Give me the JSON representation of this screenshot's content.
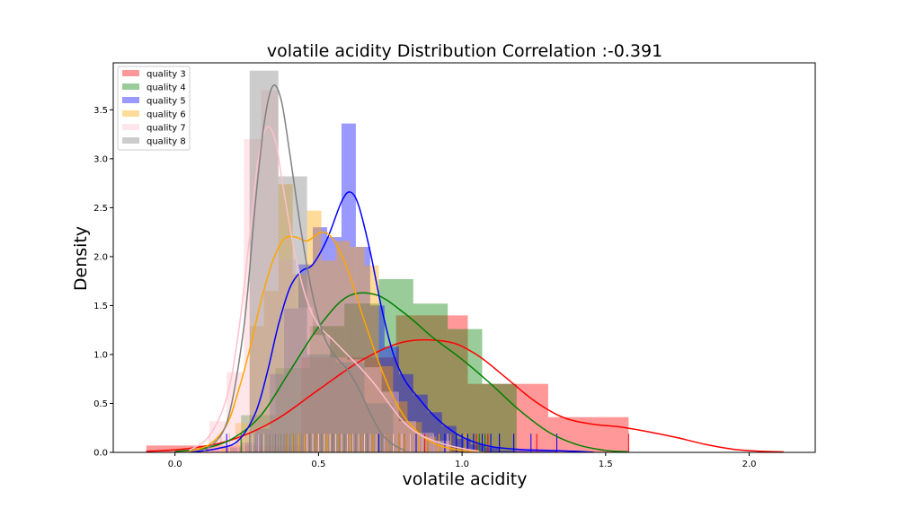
{
  "chart_data": {
    "type": "histogram-kde",
    "title": "volatile acidity Distribution Correlation :-0.391",
    "xlabel": "volatile acidity",
    "ylabel": "Density",
    "xlim": [
      -0.215,
      2.23
    ],
    "ylim": [
      0,
      3.98
    ],
    "xticks": [
      0.0,
      0.5,
      1.0,
      1.5,
      2.0
    ],
    "yticks": [
      0.0,
      0.5,
      1.0,
      1.5,
      2.0,
      2.5,
      3.0,
      3.5
    ],
    "grid": false,
    "legend_position": "upper-left",
    "series": [
      {
        "name": "quality 3",
        "color": "#ff0000",
        "bins": [
          [
            -0.1,
            0.44,
            0.07
          ],
          [
            0.44,
            0.77,
            0.97
          ],
          [
            0.77,
            1.02,
            1.4
          ],
          [
            1.02,
            1.3,
            0.7
          ],
          [
            1.3,
            1.58,
            0.36
          ]
        ],
        "kde": [
          [
            -0.1,
            0.01
          ],
          [
            0.05,
            0.04
          ],
          [
            0.2,
            0.13
          ],
          [
            0.35,
            0.33
          ],
          [
            0.5,
            0.64
          ],
          [
            0.65,
            0.94
          ],
          [
            0.8,
            1.13
          ],
          [
            0.95,
            1.13
          ],
          [
            1.05,
            1.0
          ],
          [
            1.15,
            0.77
          ],
          [
            1.25,
            0.53
          ],
          [
            1.35,
            0.36
          ],
          [
            1.45,
            0.29
          ],
          [
            1.55,
            0.26
          ],
          [
            1.65,
            0.21
          ],
          [
            1.75,
            0.15
          ],
          [
            1.85,
            0.08
          ],
          [
            1.95,
            0.03
          ],
          [
            2.05,
            0.01
          ],
          [
            2.12,
            0.005
          ]
        ],
        "rug": [
          0.44,
          0.58,
          0.61,
          0.68,
          0.73,
          0.76,
          0.8,
          0.87,
          0.9,
          0.98,
          1.02,
          1.05,
          1.09,
          1.13,
          1.18,
          1.26,
          1.33,
          1.58
        ]
      },
      {
        "name": "quality 4",
        "color": "#008000",
        "bins": [
          [
            0.23,
            0.35,
            0.38
          ],
          [
            0.35,
            0.47,
            0.86
          ],
          [
            0.47,
            0.59,
            1.29
          ],
          [
            0.59,
            0.71,
            1.52
          ],
          [
            0.71,
            0.83,
            1.77
          ],
          [
            0.83,
            0.95,
            1.52
          ],
          [
            0.95,
            1.07,
            1.26
          ],
          [
            1.07,
            1.19,
            0.7
          ]
        ],
        "kde": [
          [
            0.0,
            0.01
          ],
          [
            0.1,
            0.04
          ],
          [
            0.2,
            0.14
          ],
          [
            0.3,
            0.38
          ],
          [
            0.4,
            0.83
          ],
          [
            0.5,
            1.28
          ],
          [
            0.6,
            1.59
          ],
          [
            0.7,
            1.61
          ],
          [
            0.8,
            1.42
          ],
          [
            0.9,
            1.17
          ],
          [
            1.0,
            0.95
          ],
          [
            1.1,
            0.7
          ],
          [
            1.2,
            0.43
          ],
          [
            1.3,
            0.21
          ],
          [
            1.4,
            0.08
          ],
          [
            1.5,
            0.02
          ],
          [
            1.58,
            0.005
          ]
        ],
        "rug": [
          0.23,
          0.31,
          0.36,
          0.39,
          0.41,
          0.44,
          0.49,
          0.52,
          0.55,
          0.57,
          0.6,
          0.62,
          0.64,
          0.66,
          0.68,
          0.7,
          0.72,
          0.74,
          0.76,
          0.78,
          0.8,
          0.82,
          0.84,
          0.86,
          0.88,
          0.9,
          0.92,
          0.94,
          0.96,
          0.98,
          1.0,
          1.02,
          1.04,
          1.06,
          1.08,
          1.1,
          1.13
        ]
      },
      {
        "name": "quality 5",
        "color": "#0000ff",
        "bins": [
          [
            0.18,
            0.23,
            0.05
          ],
          [
            0.23,
            0.28,
            0.1
          ],
          [
            0.28,
            0.33,
            0.24
          ],
          [
            0.33,
            0.38,
            0.8
          ],
          [
            0.38,
            0.43,
            1.47
          ],
          [
            0.43,
            0.48,
            1.92
          ],
          [
            0.48,
            0.53,
            2.3
          ],
          [
            0.53,
            0.58,
            2.2
          ],
          [
            0.58,
            0.63,
            3.36
          ],
          [
            0.63,
            0.68,
            2.1
          ],
          [
            0.68,
            0.73,
            1.5
          ],
          [
            0.73,
            0.78,
            1.08
          ],
          [
            0.78,
            0.83,
            0.8
          ],
          [
            0.83,
            0.88,
            0.59
          ],
          [
            0.88,
            0.93,
            0.41
          ],
          [
            0.93,
            0.98,
            0.27
          ],
          [
            0.98,
            1.03,
            0.14
          ],
          [
            1.03,
            1.08,
            0.08
          ],
          [
            1.08,
            1.13,
            0.05
          ],
          [
            1.13,
            1.33,
            0.02
          ]
        ],
        "kde": [
          [
            0.05,
            0.0
          ],
          [
            0.15,
            0.04
          ],
          [
            0.22,
            0.12
          ],
          [
            0.28,
            0.4
          ],
          [
            0.32,
            0.8
          ],
          [
            0.36,
            1.3
          ],
          [
            0.4,
            1.68
          ],
          [
            0.44,
            1.85
          ],
          [
            0.48,
            1.92
          ],
          [
            0.53,
            2.18
          ],
          [
            0.58,
            2.56
          ],
          [
            0.61,
            2.66
          ],
          [
            0.64,
            2.52
          ],
          [
            0.68,
            2.05
          ],
          [
            0.72,
            1.47
          ],
          [
            0.76,
            1.01
          ],
          [
            0.8,
            0.74
          ],
          [
            0.85,
            0.55
          ],
          [
            0.9,
            0.38
          ],
          [
            0.96,
            0.23
          ],
          [
            1.02,
            0.13
          ],
          [
            1.1,
            0.06
          ],
          [
            1.2,
            0.03
          ],
          [
            1.3,
            0.02
          ],
          [
            1.4,
            0.01
          ],
          [
            1.46,
            0.0
          ]
        ],
        "rug": [
          0.18,
          0.22,
          0.26,
          0.29,
          0.31,
          0.33,
          0.35,
          0.37,
          0.39,
          0.41,
          0.43,
          0.45,
          0.47,
          0.49,
          0.51,
          0.53,
          0.55,
          0.57,
          0.58,
          0.59,
          0.6,
          0.61,
          0.62,
          0.63,
          0.64,
          0.65,
          0.66,
          0.67,
          0.68,
          0.69,
          0.7,
          0.71,
          0.72,
          0.73,
          0.74,
          0.76,
          0.78,
          0.8,
          0.82,
          0.84,
          0.86,
          0.88,
          0.9,
          0.92,
          0.94,
          0.96,
          0.98,
          1.0,
          1.02,
          1.04,
          1.07,
          1.1,
          1.13,
          1.18,
          1.24,
          1.33
        ]
      },
      {
        "name": "quality 6",
        "color": "#ffa500",
        "bins": [
          [
            0.16,
            0.21,
            0.05
          ],
          [
            0.21,
            0.26,
            0.3
          ],
          [
            0.26,
            0.31,
            1.29
          ],
          [
            0.31,
            0.36,
            1.65
          ],
          [
            0.36,
            0.41,
            2.74
          ],
          [
            0.41,
            0.46,
            1.82
          ],
          [
            0.46,
            0.51,
            2.47
          ],
          [
            0.51,
            0.56,
            1.96
          ],
          [
            0.56,
            0.61,
            2.16
          ],
          [
            0.61,
            0.66,
            2.1
          ],
          [
            0.66,
            0.71,
            1.91
          ],
          [
            0.71,
            0.76,
            0.88
          ],
          [
            0.76,
            0.81,
            0.52
          ],
          [
            0.81,
            0.86,
            0.31
          ],
          [
            0.86,
            0.91,
            0.16
          ],
          [
            0.91,
            0.96,
            0.08
          ],
          [
            0.96,
            1.01,
            0.05
          ],
          [
            1.01,
            1.06,
            0.03
          ]
        ],
        "kde": [
          [
            0.05,
            0.01
          ],
          [
            0.12,
            0.08
          ],
          [
            0.18,
            0.28
          ],
          [
            0.22,
            0.62
          ],
          [
            0.26,
            1.05
          ],
          [
            0.3,
            1.55
          ],
          [
            0.34,
            1.95
          ],
          [
            0.38,
            2.18
          ],
          [
            0.42,
            2.2
          ],
          [
            0.46,
            2.16
          ],
          [
            0.51,
            2.25
          ],
          [
            0.55,
            2.18
          ],
          [
            0.6,
            1.88
          ],
          [
            0.65,
            1.43
          ],
          [
            0.7,
            1.0
          ],
          [
            0.75,
            0.63
          ],
          [
            0.8,
            0.36
          ],
          [
            0.86,
            0.17
          ],
          [
            0.92,
            0.07
          ],
          [
            1.0,
            0.02
          ],
          [
            1.08,
            0.0
          ]
        ],
        "rug": [
          0.16,
          0.19,
          0.22,
          0.24,
          0.26,
          0.28,
          0.3,
          0.31,
          0.32,
          0.33,
          0.34,
          0.35,
          0.36,
          0.37,
          0.38,
          0.39,
          0.4,
          0.41,
          0.42,
          0.43,
          0.44,
          0.45,
          0.46,
          0.47,
          0.48,
          0.49,
          0.5,
          0.51,
          0.52,
          0.53,
          0.54,
          0.55,
          0.56,
          0.57,
          0.58,
          0.59,
          0.6,
          0.61,
          0.62,
          0.63,
          0.64,
          0.65,
          0.66,
          0.67,
          0.68,
          0.69,
          0.7,
          0.72,
          0.74,
          0.76,
          0.78,
          0.8,
          0.82,
          0.85,
          0.88,
          0.92,
          0.96,
          1.01
        ]
      },
      {
        "name": "quality 7",
        "color": "#ffc0cb",
        "bins": [
          [
            0.12,
            0.18,
            0.32
          ],
          [
            0.18,
            0.24,
            0.82
          ],
          [
            0.24,
            0.3,
            3.2
          ],
          [
            0.3,
            0.36,
            3.7
          ],
          [
            0.36,
            0.42,
            1.97
          ],
          [
            0.42,
            0.48,
            1.48
          ],
          [
            0.48,
            0.54,
            1.2
          ],
          [
            0.54,
            0.6,
            0.97
          ],
          [
            0.6,
            0.66,
            0.95
          ],
          [
            0.66,
            0.72,
            0.87
          ],
          [
            0.72,
            0.78,
            0.62
          ],
          [
            0.78,
            0.84,
            0.32
          ],
          [
            0.84,
            0.9,
            0.2
          ],
          [
            0.9,
            0.96,
            0.12
          ]
        ],
        "kde": [
          [
            0.05,
            0.02
          ],
          [
            0.12,
            0.17
          ],
          [
            0.18,
            0.56
          ],
          [
            0.22,
            1.2
          ],
          [
            0.26,
            2.2
          ],
          [
            0.29,
            3.0
          ],
          [
            0.32,
            3.32
          ],
          [
            0.35,
            3.18
          ],
          [
            0.38,
            2.65
          ],
          [
            0.42,
            2.0
          ],
          [
            0.46,
            1.55
          ],
          [
            0.5,
            1.3
          ],
          [
            0.55,
            1.15
          ],
          [
            0.6,
            1.0
          ],
          [
            0.65,
            0.85
          ],
          [
            0.7,
            0.68
          ],
          [
            0.75,
            0.48
          ],
          [
            0.8,
            0.3
          ],
          [
            0.86,
            0.17
          ],
          [
            0.93,
            0.09
          ],
          [
            1.0,
            0.04
          ],
          [
            1.06,
            0.01
          ]
        ],
        "rug": [
          0.12,
          0.16,
          0.19,
          0.22,
          0.24,
          0.26,
          0.27,
          0.28,
          0.29,
          0.3,
          0.31,
          0.32,
          0.33,
          0.34,
          0.35,
          0.36,
          0.37,
          0.38,
          0.4,
          0.42,
          0.44,
          0.46,
          0.48,
          0.5,
          0.52,
          0.54,
          0.56,
          0.58,
          0.6,
          0.62,
          0.64,
          0.66,
          0.68,
          0.7,
          0.73,
          0.76,
          0.79,
          0.82,
          0.86,
          0.9,
          0.95
        ]
      },
      {
        "name": "quality 8",
        "color": "#808080",
        "bins": [
          [
            0.26,
            0.36,
            3.9
          ],
          [
            0.36,
            0.46,
            2.82
          ],
          [
            0.46,
            0.56,
            1.0
          ],
          [
            0.56,
            0.66,
            0.92
          ],
          [
            0.66,
            0.76,
            0.5
          ]
        ],
        "kde": [
          [
            0.1,
            0.01
          ],
          [
            0.18,
            0.3
          ],
          [
            0.24,
            1.28
          ],
          [
            0.28,
            2.55
          ],
          [
            0.31,
            3.35
          ],
          [
            0.34,
            3.74
          ],
          [
            0.37,
            3.6
          ],
          [
            0.4,
            3.05
          ],
          [
            0.44,
            2.25
          ],
          [
            0.48,
            1.6
          ],
          [
            0.52,
            1.18
          ],
          [
            0.56,
            0.98
          ],
          [
            0.6,
            0.85
          ],
          [
            0.64,
            0.65
          ],
          [
            0.68,
            0.4
          ],
          [
            0.72,
            0.19
          ],
          [
            0.76,
            0.08
          ],
          [
            0.8,
            0.02
          ]
        ],
        "rug": [
          0.26,
          0.28,
          0.3,
          0.32,
          0.33,
          0.34,
          0.35,
          0.36,
          0.37,
          0.38,
          0.4,
          0.42,
          0.44,
          0.47,
          0.51,
          0.55,
          0.59,
          0.63,
          0.67,
          0.72
        ]
      }
    ]
  }
}
